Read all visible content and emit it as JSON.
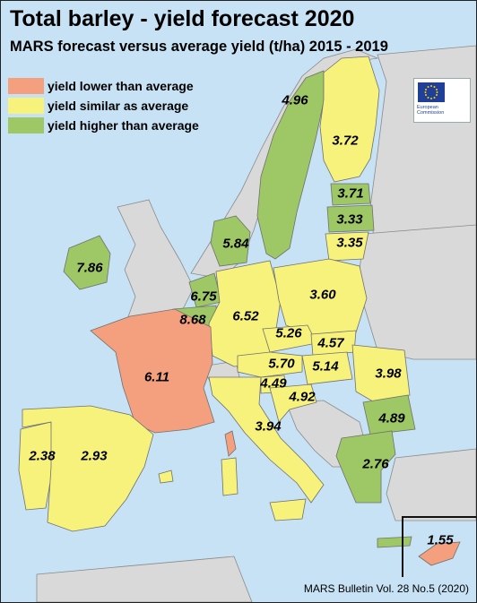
{
  "title": "Total barley - yield forecast 2020",
  "subtitle": "MARS forecast versus average yield (t/ha) 2015 - 2019",
  "legend": [
    {
      "label": "yield lower than average",
      "color": "#f4a07e"
    },
    {
      "label": "yield similar as average",
      "color": "#f6f27c"
    },
    {
      "label": "yield higher than average",
      "color": "#9ec765"
    }
  ],
  "colors": {
    "sea": "#c6e2f4",
    "non_eu": "#d9d9d9",
    "border": "#6f6f6f"
  },
  "logo": {
    "line1": "European",
    "line2": "Commission"
  },
  "values": {
    "sweden": "4.96",
    "finland": "3.72",
    "estonia": "3.71",
    "latvia": "3.33",
    "lithuania": "3.35",
    "denmark": "5.84",
    "ireland": "7.86",
    "netherlands": "6.75",
    "belgium": "8.68",
    "germany": "6.52",
    "poland": "3.60",
    "czechia": "5.26",
    "slovakia": "4.57",
    "france": "6.11",
    "austria": "5.70",
    "hungary": "5.14",
    "romania": "3.98",
    "slovenia": "4.49",
    "croatia": "4.92",
    "bulgaria": "4.89",
    "italy": "3.94",
    "portugal": "2.38",
    "spain": "2.93",
    "greece": "2.76",
    "cyprus": "1.55"
  },
  "source": "MARS Bulletin Vol. 28 No.5 (2020)"
}
